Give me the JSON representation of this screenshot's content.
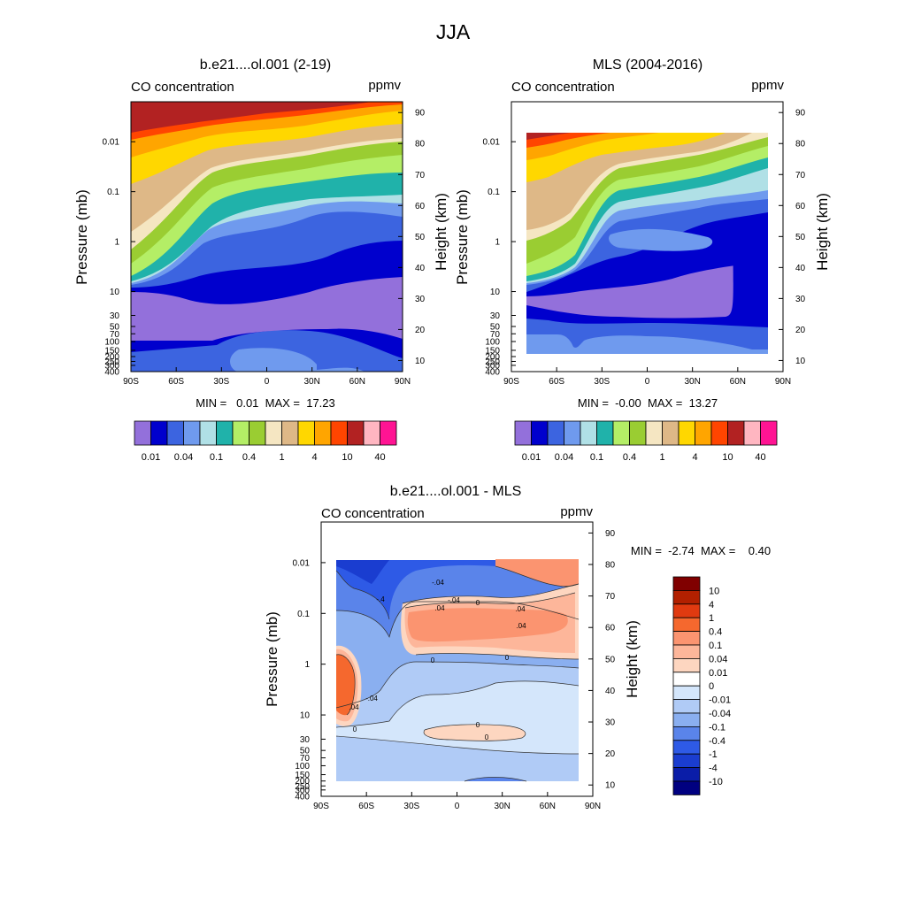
{
  "figure": {
    "title": "JJA"
  },
  "chart_data": [
    {
      "type": "heatmap",
      "title": "b.e21....ol.001 (2-19)",
      "left_string": "CO concentration",
      "right_string": "ppmv",
      "xlabel": "",
      "ylabel": "Pressure (mb)",
      "y2label": "Height (km)",
      "x_ticks": [
        "90S",
        "60S",
        "30S",
        "0",
        "30N",
        "60N",
        "90N"
      ],
      "y_ticks": [
        "0.01",
        "0.1",
        "1",
        "10",
        "30",
        "50",
        "70",
        "100",
        "150",
        "200",
        "250",
        "300",
        "400"
      ],
      "y2_ticks": [
        "10",
        "20",
        "30",
        "40",
        "50",
        "60",
        "70",
        "80",
        "90"
      ],
      "min_max": "MIN =   0.01  MAX =  17.23",
      "colorbar_labels": [
        "0.01",
        "0.04",
        "0.1",
        "0.4",
        "1",
        "4",
        "10",
        "40"
      ]
    },
    {
      "type": "heatmap",
      "title": "MLS (2004-2016)",
      "left_string": "CO concentration",
      "right_string": "ppmv",
      "xlabel": "",
      "ylabel": "Pressure (mb)",
      "y2label": "Height (km)",
      "x_ticks": [
        "90S",
        "60S",
        "30S",
        "0",
        "30N",
        "60N",
        "90N"
      ],
      "y_ticks": [
        "0.01",
        "0.1",
        "1",
        "10",
        "30",
        "50",
        "70",
        "100",
        "150",
        "200",
        "250",
        "300",
        "400"
      ],
      "y2_ticks": [
        "10",
        "20",
        "30",
        "40",
        "50",
        "60",
        "70",
        "80",
        "90"
      ],
      "min_max": "MIN =  -0.00  MAX =  13.27",
      "colorbar_labels": [
        "0.01",
        "0.04",
        "0.1",
        "0.4",
        "1",
        "4",
        "10",
        "40"
      ]
    },
    {
      "type": "heatmap",
      "title": "b.e21....ol.001 - MLS",
      "left_string": "CO concentration",
      "right_string": "ppmv",
      "xlabel": "",
      "ylabel": "Pressure (mb)",
      "y2label": "Height (km)",
      "x_ticks": [
        "90S",
        "60S",
        "30S",
        "0",
        "30N",
        "60N",
        "90N"
      ],
      "y_ticks": [
        "0.01",
        "0.1",
        "1",
        "10",
        "30",
        "50",
        "70",
        "100",
        "150",
        "200",
        "250",
        "300",
        "400"
      ],
      "y2_ticks": [
        "10",
        "20",
        "30",
        "40",
        "50",
        "60",
        "70",
        "80",
        "90"
      ],
      "min_max": "MIN =  -2.74  MAX =    0.40",
      "colorbar_labels": [
        "10",
        "4",
        "1",
        "0.4",
        "0.1",
        "0.04",
        "0.01",
        "0",
        "-0.01",
        "-0.04",
        "-0.1",
        "-0.4",
        "-1",
        "-4",
        "-10"
      ],
      "contour_labels": [
        "-.4",
        "-.04",
        "-.04",
        ".04",
        ".04",
        ".04",
        "0",
        "0",
        "0",
        "0",
        "-.04",
        ".04",
        "0",
        "0"
      ]
    }
  ],
  "palettes": {
    "abs": [
      "#9370db",
      "#0000cd",
      "#3c64e0",
      "#6f9aee",
      "#b0e0e6",
      "#20b2aa",
      "#b4ee66",
      "#9acd32",
      "#f5e6c2",
      "#deb887",
      "#ffd700",
      "#ffa500",
      "#ff4500",
      "#b22222",
      "#ffb6c1",
      "#ff1493"
    ],
    "diff": [
      "#800000",
      "#b22000",
      "#e03a10",
      "#f5682e",
      "#fb9470",
      "#fdb69a",
      "#fdd6c0",
      "#ffffff",
      "#d4e6fb",
      "#b0cbf6",
      "#8aaff0",
      "#5a84ea",
      "#2e5ae6",
      "#1a3dd0",
      "#0a1da8",
      "#000080"
    ]
  }
}
